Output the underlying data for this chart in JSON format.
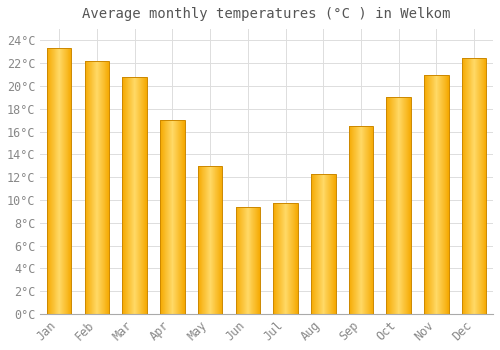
{
  "title": "Average monthly temperatures (°C ) in Welkom",
  "months": [
    "Jan",
    "Feb",
    "Mar",
    "Apr",
    "May",
    "Jun",
    "Jul",
    "Aug",
    "Sep",
    "Oct",
    "Nov",
    "Dec"
  ],
  "temperatures": [
    23.3,
    22.2,
    20.8,
    17.0,
    13.0,
    9.4,
    9.7,
    12.3,
    16.5,
    19.0,
    21.0,
    22.5
  ],
  "bar_color_center": "#FFD966",
  "bar_color_edge": "#F5A800",
  "bar_border_color": "#CC8800",
  "background_color": "#FFFFFF",
  "plot_bg_color": "#FFFFFF",
  "grid_color": "#DDDDDD",
  "text_color": "#888888",
  "title_color": "#555555",
  "ylim": [
    0,
    25
  ],
  "ytick_max": 24,
  "ytick_step": 2,
  "title_fontsize": 10,
  "tick_fontsize": 8.5
}
